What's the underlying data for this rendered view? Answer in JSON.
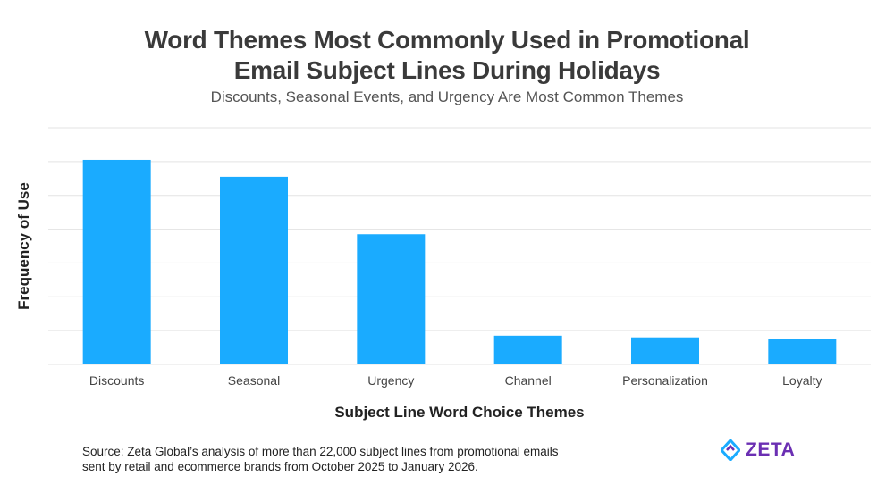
{
  "chart_data": {
    "type": "bar",
    "title_lines": [
      "Word Themes Most Commonly Used in Promotional",
      "Email Subject Lines During Holidays"
    ],
    "subtitle": "Discounts, Seasonal Events, and Urgency Are Most Common Themes",
    "xlabel": "Subject Line Word Choice Themes",
    "ylabel": "Frequency of Use",
    "categories": [
      "Discounts",
      "Seasonal",
      "Urgency",
      "Channel",
      "Personalization",
      "Loyalty"
    ],
    "values": [
      6.05,
      5.55,
      3.85,
      0.85,
      0.8,
      0.75
    ],
    "ylim": [
      0,
      7
    ],
    "grid": true,
    "bar_color": "#1AABFF"
  },
  "footer": {
    "source_lines": [
      "Source: Zeta Global’s analysis of more than 22,000 subject lines from promotional emails",
      "sent by retail and ecommerce brands from October 2025 to January 2026."
    ],
    "logo_text": "ZETA",
    "logo_icon": "zeta-diamond-icon",
    "logo_colors": [
      "#1AABFF",
      "#6b2fb3"
    ]
  }
}
